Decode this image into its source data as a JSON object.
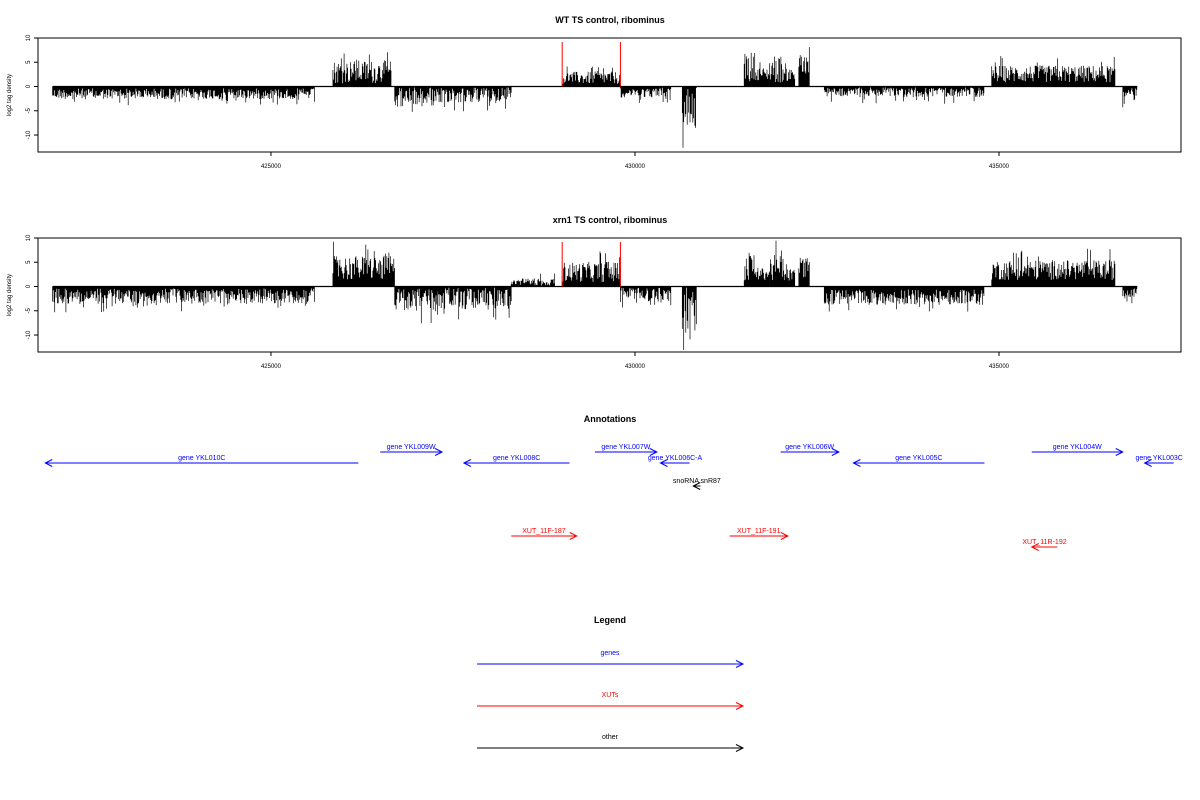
{
  "chart_data": [
    {
      "type": "bar",
      "title": "WT TS control, ribominus",
      "ylabel": "log2 tag density",
      "xlabel": "",
      "xlim": [
        421800,
        437500
      ],
      "ylim": [
        -13.5,
        10
      ],
      "x_ticks": [
        425000,
        430000,
        435000
      ],
      "y_ticks": [
        10,
        5,
        0,
        -5,
        -10
      ],
      "markers": [
        429000,
        429800
      ],
      "marker_color": "#ff0000",
      "bar_color": "#000000",
      "segments": [
        {
          "start": 422000,
          "end": 425600,
          "sign": -1,
          "mean": 1.5,
          "amp": 1.4
        },
        {
          "start": 425850,
          "end": 426650,
          "sign": 1,
          "mean": 3.0,
          "amp": 3.0
        },
        {
          "start": 426700,
          "end": 427300,
          "sign": -1,
          "mean": 2.2,
          "amp": 2.6
        },
        {
          "start": 427300,
          "end": 428300,
          "sign": -1,
          "mean": 1.6,
          "amp": 2.2
        },
        {
          "start": 429000,
          "end": 429800,
          "sign": 1,
          "mean": 1.8,
          "amp": 1.6
        },
        {
          "start": 429800,
          "end": 430500,
          "sign": -1,
          "mean": 1.2,
          "amp": 1.3
        },
        {
          "start": 430650,
          "end": 430850,
          "sign": -1,
          "mean": 4.0,
          "amp": 6.5
        },
        {
          "start": 431500,
          "end": 431650,
          "sign": 1,
          "mean": 4.0,
          "amp": 4.0
        },
        {
          "start": 431650,
          "end": 431850,
          "sign": 1,
          "mean": 2.6,
          "amp": 1.6
        },
        {
          "start": 431850,
          "end": 432050,
          "sign": 1,
          "mean": 3.6,
          "amp": 3.6
        },
        {
          "start": 432050,
          "end": 432200,
          "sign": 1,
          "mean": 2.4,
          "amp": 1.6
        },
        {
          "start": 432250,
          "end": 432400,
          "sign": 1,
          "mean": 4.0,
          "amp": 2.8
        },
        {
          "start": 432600,
          "end": 434800,
          "sign": -1,
          "mean": 1.0,
          "amp": 1.5
        },
        {
          "start": 434900,
          "end": 436600,
          "sign": 1,
          "mean": 2.6,
          "amp": 2.2
        },
        {
          "start": 436700,
          "end": 436900,
          "sign": -1,
          "mean": 1.6,
          "amp": 1.6
        }
      ]
    },
    {
      "type": "bar",
      "title": "xrn1 TS control, ribominus",
      "ylabel": "log2 tag density",
      "xlabel": "",
      "xlim": [
        421800,
        437500
      ],
      "ylim": [
        -13.5,
        10
      ],
      "x_ticks": [
        425000,
        430000,
        435000
      ],
      "y_ticks": [
        10,
        5,
        0,
        -5,
        -10
      ],
      "markers": [
        429000,
        429800
      ],
      "marker_color": "#ff0000",
      "bar_color": "#000000",
      "segments": [
        {
          "start": 422000,
          "end": 425600,
          "sign": -1,
          "mean": 2.0,
          "amp": 2.0
        },
        {
          "start": 425850,
          "end": 426700,
          "sign": 1,
          "mean": 3.8,
          "amp": 3.2
        },
        {
          "start": 426700,
          "end": 427300,
          "sign": -1,
          "mean": 2.8,
          "amp": 3.0
        },
        {
          "start": 427300,
          "end": 428300,
          "sign": -1,
          "mean": 2.4,
          "amp": 3.0
        },
        {
          "start": 428300,
          "end": 428900,
          "sign": 1,
          "mean": 0.8,
          "amp": 1.2
        },
        {
          "start": 429000,
          "end": 429800,
          "sign": 1,
          "mean": 3.0,
          "amp": 2.6
        },
        {
          "start": 429800,
          "end": 430500,
          "sign": -1,
          "mean": 1.6,
          "amp": 2.0
        },
        {
          "start": 430650,
          "end": 430850,
          "sign": -1,
          "mean": 4.5,
          "amp": 6.5
        },
        {
          "start": 431500,
          "end": 431650,
          "sign": 1,
          "mean": 4.0,
          "amp": 4.0
        },
        {
          "start": 431650,
          "end": 431850,
          "sign": 1,
          "mean": 2.6,
          "amp": 1.6
        },
        {
          "start": 431850,
          "end": 432050,
          "sign": 1,
          "mean": 3.6,
          "amp": 3.6
        },
        {
          "start": 432050,
          "end": 432200,
          "sign": 1,
          "mean": 2.4,
          "amp": 1.6
        },
        {
          "start": 432250,
          "end": 432400,
          "sign": 1,
          "mean": 4.0,
          "amp": 2.8
        },
        {
          "start": 432600,
          "end": 434800,
          "sign": -1,
          "mean": 2.2,
          "amp": 2.0
        },
        {
          "start": 434900,
          "end": 436600,
          "sign": 1,
          "mean": 3.4,
          "amp": 2.6
        },
        {
          "start": 436700,
          "end": 436900,
          "sign": -1,
          "mean": 2.0,
          "amp": 2.0
        }
      ]
    }
  ],
  "annotations": {
    "title": "Annotations",
    "xlim": [
      421800,
      437500
    ],
    "features": [
      {
        "label": "gene YKL010C",
        "start": 421900,
        "end": 426200,
        "strand": "-",
        "row": 1,
        "kind": "gene"
      },
      {
        "label": "gene YKL009W",
        "start": 426500,
        "end": 427350,
        "strand": "+",
        "row": 0,
        "kind": "gene"
      },
      {
        "label": "gene YKL008C",
        "start": 427650,
        "end": 429100,
        "strand": "-",
        "row": 1,
        "kind": "gene"
      },
      {
        "label": "gene YKL007W",
        "start": 429450,
        "end": 430300,
        "strand": "+",
        "row": 0,
        "kind": "gene"
      },
      {
        "label": "gene YKL006C-A",
        "start": 430350,
        "end": 430750,
        "strand": "-",
        "row": 1,
        "kind": "gene"
      },
      {
        "label": "snoRNA snR87",
        "start": 430800,
        "end": 430900,
        "strand": "-",
        "row": 2,
        "kind": "other"
      },
      {
        "label": "gene YKL006W",
        "start": 432000,
        "end": 432800,
        "strand": "+",
        "row": 0,
        "kind": "gene"
      },
      {
        "label": "gene YKL005C",
        "start": 433000,
        "end": 434800,
        "strand": "-",
        "row": 1,
        "kind": "gene"
      },
      {
        "label": "gene YKL004W",
        "start": 435450,
        "end": 436700,
        "strand": "+",
        "row": 0,
        "kind": "gene"
      },
      {
        "label": "gene YKL003C",
        "start": 437000,
        "end": 437400,
        "strand": "-",
        "row": 1,
        "kind": "gene"
      },
      {
        "label": "XUT_11F-187",
        "start": 428300,
        "end": 429200,
        "strand": "+",
        "row": 4,
        "kind": "xut"
      },
      {
        "label": "XUT_11F-191",
        "start": 431300,
        "end": 432100,
        "strand": "+",
        "row": 4,
        "kind": "xut"
      },
      {
        "label": "XUT_11R-192",
        "start": 435450,
        "end": 435800,
        "strand": "-",
        "row": 5,
        "kind": "xut"
      }
    ]
  },
  "legend": {
    "title": "Legend",
    "entries": [
      {
        "label": "genes",
        "color": "#0000ff"
      },
      {
        "label": "XUTs",
        "color": "#ff0000"
      },
      {
        "label": "other",
        "color": "#000000"
      }
    ]
  },
  "colors": {
    "gene": "#0000ff",
    "xut": "#ff0000",
    "other": "#000000",
    "axis": "#000000"
  }
}
